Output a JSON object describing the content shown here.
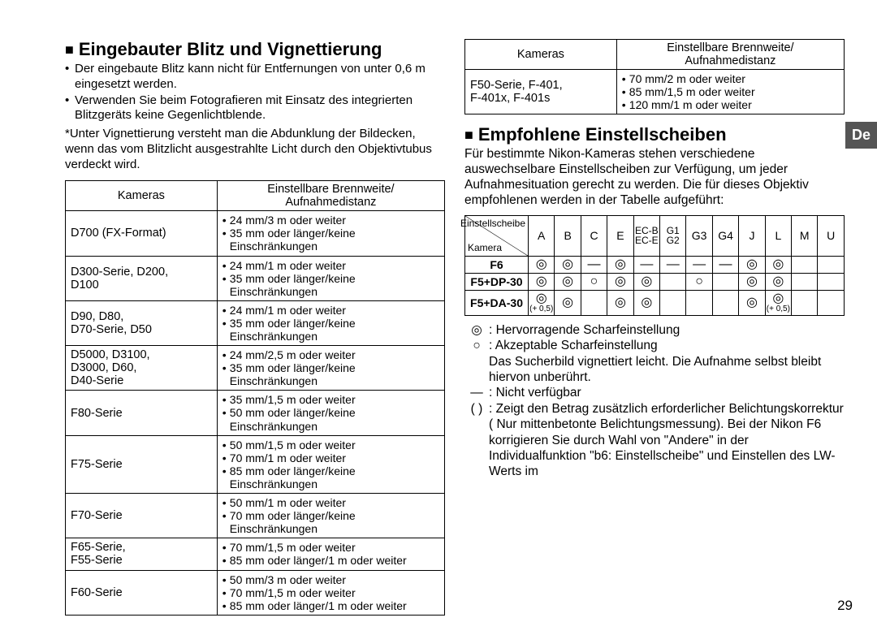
{
  "side_tab": "De",
  "page_number": "29",
  "leftcol": {
    "heading": "Eingebauter Blitz und Vignettierung",
    "bullet1": "Der eingebaute Blitz kann nicht für Entfernungen von unter 0,6 m eingesetzt werden.",
    "bullet2": "Verwenden Sie beim Fotografieren mit Einsatz des integrierten Blitzgeräts keine Gegenlichtblende.",
    "note": "*Unter Vignettierung versteht man die Abdunklung der Bildecken, wenn das vom Blitzlicht ausgestrahlte Licht durch den Objektivtubus verdeckt wird.",
    "table": {
      "h1": "Kameras",
      "h2a": "Einstellbare Brennweite/",
      "h2b": "Aufnahmedistanz",
      "rows": [
        {
          "cam": "D700 (FX-Format)",
          "specs": [
            "24 mm/3 m oder weiter",
            "35 mm oder länger/keine Einschränkungen"
          ]
        },
        {
          "cam": "D300-Serie, D200,\nD100",
          "specs": [
            "24 mm/1 m oder weiter",
            "35 mm oder länger/keine Einschränkungen"
          ]
        },
        {
          "cam": "D90, D80,\nD70-Serie, D50",
          "specs": [
            "24 mm/1 m oder weiter",
            "35 mm oder länger/keine Einschränkungen"
          ]
        },
        {
          "cam": "D5000, D3100,\nD3000, D60,\nD40-Serie",
          "specs": [
            "24 mm/2,5 m oder weiter",
            "35 mm oder länger/keine Einschränkungen"
          ]
        },
        {
          "cam": "F80-Serie",
          "specs": [
            "35 mm/1,5 m oder weiter",
            "50 mm oder länger/keine Einschränkungen"
          ]
        },
        {
          "cam": "F75-Serie",
          "specs": [
            "50 mm/1,5 m oder weiter",
            "70 mm/1 m oder weiter",
            "85 mm oder länger/keine Einschränkungen"
          ]
        },
        {
          "cam": "F70-Serie",
          "specs": [
            "50 mm/1 m oder weiter",
            "70 mm oder länger/keine Einschränkungen"
          ]
        },
        {
          "cam": "F65-Serie,\nF55-Serie",
          "specs": [
            "70 mm/1,5 m oder weiter",
            "85 mm oder länger/1 m oder weiter"
          ]
        },
        {
          "cam": "F60-Serie",
          "specs": [
            "50 mm/3 m oder weiter",
            "70 mm/1,5 m oder weiter",
            "85 mm oder länger/1 m oder weiter"
          ]
        }
      ]
    }
  },
  "rightcol": {
    "toptable": {
      "h1": "Kameras",
      "h2a": "Einstellbare Brennweite/",
      "h2b": "Aufnahmedistanz",
      "row": {
        "cam": "F50-Serie, F-401,\nF-401x, F-401s",
        "specs": [
          "70 mm/2 m oder weiter",
          "85 mm/1,5 m oder weiter",
          "120 mm/1 m oder weiter"
        ]
      }
    },
    "heading": "Empfohlene Einstellscheiben",
    "para": "Für bestimmte Nikon-Kameras stehen verschiedene auswechselbare Einstellscheiben zur Verfügung, um jeder Aufnahmesituation gerecht zu werden. Die für dieses Objektiv empfohlenen werden in der Tabelle aufgeführt:",
    "screen_table": {
      "diag_top": "Einstellscheibe",
      "diag_bot": "Kamera",
      "cols": [
        "A",
        "B",
        "C",
        "E",
        "EC-B\nEC-E",
        "G1\nG2",
        "G3",
        "G4",
        "J",
        "L",
        "M",
        "U"
      ],
      "rows": [
        {
          "cam": "F6",
          "cells": [
            "◎",
            "◎",
            "—",
            "◎",
            "—",
            "—",
            "—",
            "—",
            "◎",
            "◎",
            "",
            ""
          ]
        },
        {
          "cam": "F5+DP-30",
          "cells": [
            "◎",
            "◎",
            "○",
            "◎",
            "◎",
            "",
            "○",
            "",
            "◎",
            "◎",
            "",
            ""
          ]
        },
        {
          "cam": "F5+DA-30",
          "cells": [
            "◎+",
            "◎",
            "",
            "◎",
            "◎",
            "",
            "",
            "",
            "◎",
            "◎+",
            "",
            ""
          ]
        }
      ]
    },
    "legend": {
      "l1sym": "◎",
      "l1txt": ": Hervorragende Scharfeinstellung",
      "l2sym": "○",
      "l2txt": ": Akzeptable Scharfeinstellung",
      "l2b": "Das Sucherbild vignettiert leicht. Die Aufnahme selbst bleibt hiervon unberührt.",
      "l3sym": "—",
      "l3txt": ": Nicht verfügbar",
      "l4sym": "( )",
      "l4txt": ": Zeigt den Betrag zusätzlich erforderlicher Belichtungskorrektur ( Nur mittenbetonte Belichtungsmessung). Bei der Nikon F6 korrigieren Sie durch Wahl von \"Andere\" in der Individualfunktion \"b6: Einstellscheibe\" und Einstellen des LW-Werts im"
    }
  }
}
